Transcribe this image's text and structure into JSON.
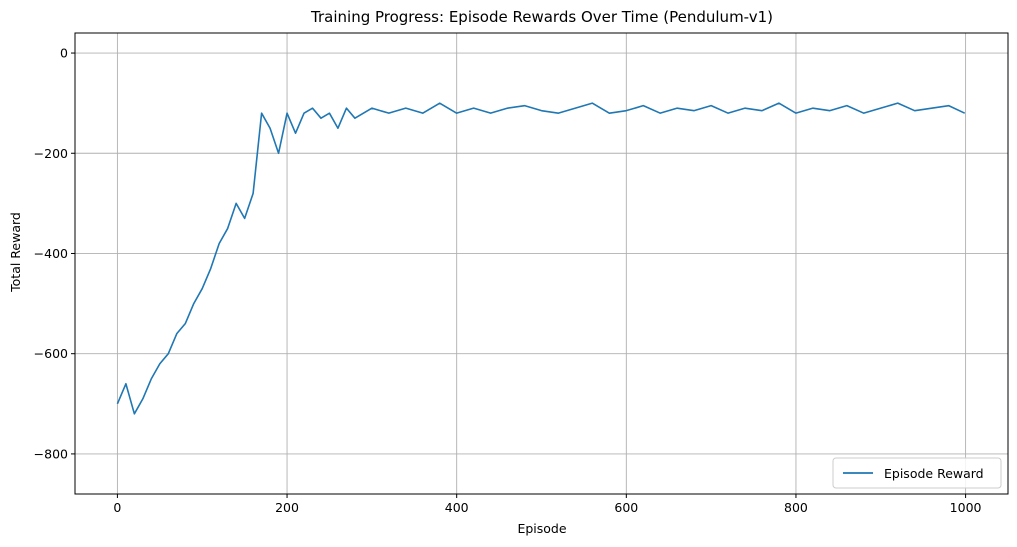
{
  "chart_data": {
    "type": "line",
    "title": "Training Progress: Episode Rewards Over Time (Pendulum-v1)",
    "xlabel": "Episode",
    "ylabel": "Total Reward",
    "xlim": [
      -50,
      1050
    ],
    "ylim": [
      -880,
      40
    ],
    "xticks": [
      0,
      200,
      400,
      600,
      800,
      1000
    ],
    "xtick_labels": [
      "0",
      "200",
      "400",
      "600",
      "800",
      "1000"
    ],
    "yticks": [
      0,
      -200,
      -400,
      -600,
      -800
    ],
    "ytick_labels": [
      "0",
      "−200",
      "−400",
      "−600",
      "−800"
    ],
    "grid": true,
    "legend_position": "lower-right",
    "series_color": "#1f77b4",
    "series": [
      {
        "name": "Episode Reward",
        "x": [
          0,
          10,
          20,
          30,
          40,
          50,
          60,
          70,
          80,
          90,
          100,
          110,
          120,
          130,
          140,
          150,
          160,
          170,
          180,
          190,
          200,
          210,
          220,
          230,
          240,
          250,
          260,
          270,
          280,
          290,
          300,
          320,
          340,
          360,
          380,
          400,
          420,
          440,
          460,
          480,
          500,
          520,
          540,
          560,
          580,
          600,
          620,
          640,
          660,
          680,
          700,
          720,
          740,
          760,
          780,
          800,
          820,
          840,
          860,
          880,
          900,
          920,
          940,
          960,
          980,
          999
        ],
        "y": [
          -700,
          -660,
          -720,
          -690,
          -650,
          -620,
          -600,
          -560,
          -540,
          -500,
          -470,
          -430,
          -380,
          -350,
          -300,
          -330,
          -280,
          -120,
          -150,
          -200,
          -120,
          -160,
          -120,
          -110,
          -130,
          -120,
          -150,
          -110,
          -130,
          -120,
          -110,
          -120,
          -110,
          -120,
          -100,
          -120,
          -110,
          -120,
          -110,
          -105,
          -115,
          -120,
          -110,
          -100,
          -120,
          -115,
          -105,
          -120,
          -110,
          -115,
          -105,
          -120,
          -110,
          -115,
          -100,
          -120,
          -110,
          -115,
          -105,
          -120,
          -110,
          -100,
          -115,
          -110,
          -105,
          -120
        ]
      }
    ]
  }
}
